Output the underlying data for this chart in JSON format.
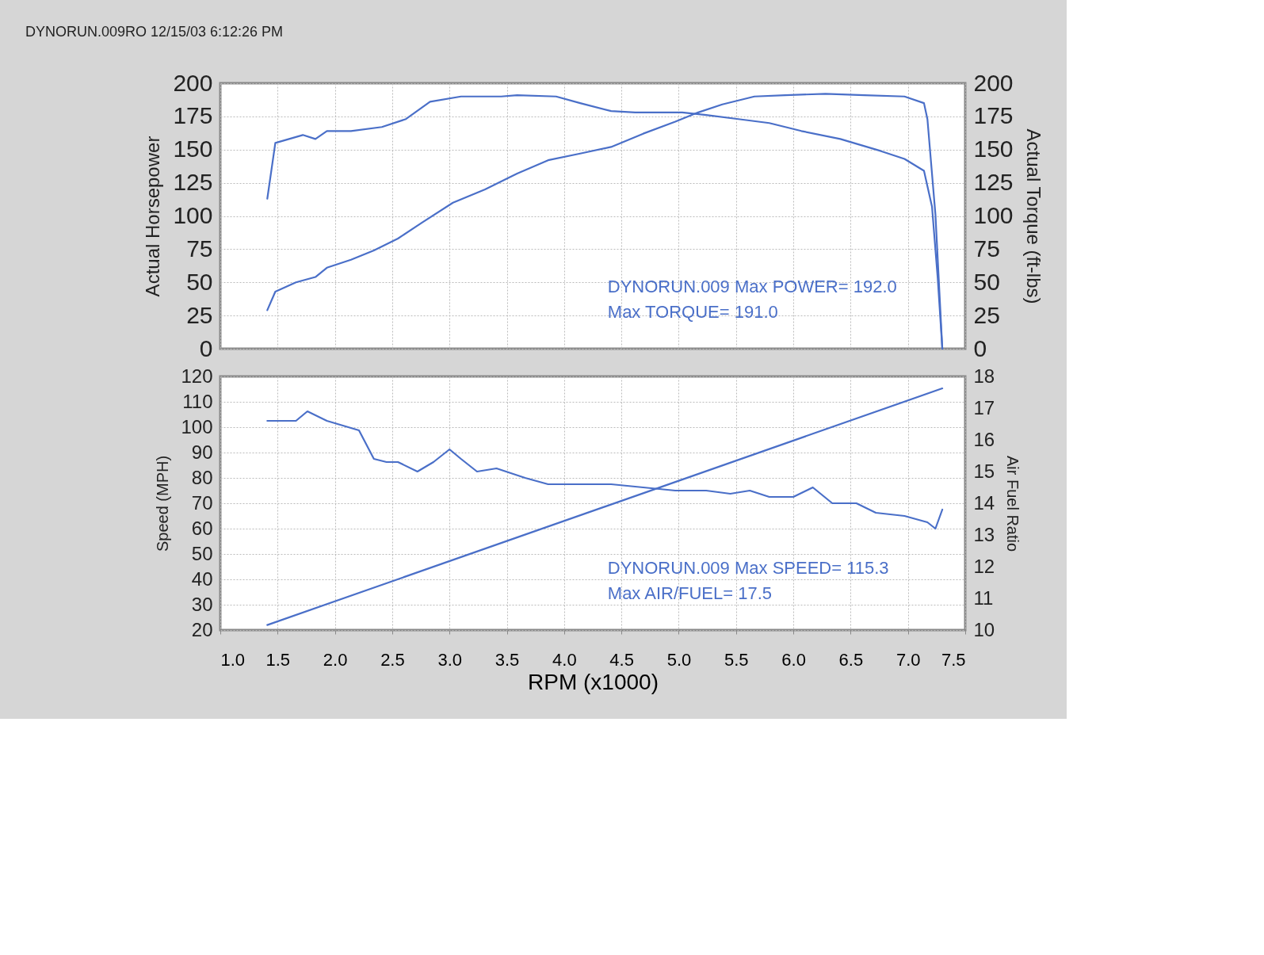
{
  "chart_data": [
    {
      "type": "line",
      "title": "DYNORUN.009RO  12/15/03 6:12:26 PM",
      "ylabel": "Actual Horsepower",
      "y2label": "Actual Torque (ft-lbs)",
      "annotations": [
        "DYNORUN.009  Max POWER= 192.0",
        "Max TORQUE= 191.0"
      ],
      "xlim": [
        1.0,
        7.5
      ],
      "xticks": [
        1,
        1.5,
        2,
        2.5,
        3,
        3.5,
        4,
        4.5,
        5,
        5.5,
        6,
        6.5,
        7,
        7.5
      ],
      "ylim": [
        0,
        200
      ],
      "yticks": [
        0,
        25,
        50,
        75,
        100,
        125,
        150,
        175,
        200
      ],
      "y2lim": [
        0,
        200
      ],
      "y2ticks": [
        0,
        25,
        50,
        75,
        100,
        125,
        150,
        175,
        200
      ],
      "grid": true,
      "tick_labels": "y",
      "series": [
        {
          "color": "#4a6fc8",
          "axis": "y",
          "x": [
            1.41,
            1.48,
            1.66,
            1.83,
            1.93,
            2.14,
            2.34,
            2.55,
            2.76,
            3.03,
            3.31,
            3.59,
            3.86,
            4.14,
            4.41,
            4.69,
            4.97,
            5.17,
            5.38,
            5.66,
            5.93,
            6.28,
            6.62,
            6.97,
            7.14,
            7.17,
            7.24,
            7.3
          ],
          "values": [
            29,
            43,
            50,
            54,
            61,
            67,
            74,
            83,
            95,
            110,
            120,
            132,
            142,
            147,
            152,
            162,
            171,
            178,
            184,
            190,
            191,
            192,
            191,
            190,
            185,
            173,
            101,
            0
          ]
        },
        {
          "color": "#4a6fc8",
          "axis": "y2",
          "x": [
            1.41,
            1.48,
            1.72,
            1.83,
            1.93,
            2.14,
            2.41,
            2.62,
            2.83,
            3.1,
            3.45,
            3.59,
            3.93,
            4.14,
            4.41,
            4.62,
            5.03,
            5.24,
            5.52,
            5.79,
            6.07,
            6.41,
            6.76,
            6.97,
            7.14,
            7.21,
            7.26,
            7.3
          ],
          "values": [
            113,
            155,
            161,
            158,
            164,
            164,
            167,
            173,
            186,
            190,
            190,
            191,
            190,
            185,
            179,
            178,
            178,
            176,
            173,
            170,
            164,
            158,
            149,
            143,
            134,
            107,
            53,
            0
          ]
        }
      ]
    },
    {
      "type": "line",
      "xlabel": "RPM (x1000)",
      "ylabel": "Speed (MPH)",
      "y2label": "Air Fuel Ratio",
      "annotations": [
        "DYNORUN.009  Max SPEED= 115.3",
        "Max AIR/FUEL= 17.5"
      ],
      "xlim": [
        1.0,
        7.5
      ],
      "xticks": [
        {
          "value": 1.0,
          "label": "1.0"
        },
        1.5,
        {
          "value": 2.0,
          "label": "2.0"
        },
        2.5,
        {
          "value": 3.0,
          "label": "3.0"
        },
        3.5,
        {
          "value": 4.0,
          "label": "4.0"
        },
        4.5,
        {
          "value": 5.0,
          "label": "5.0"
        },
        5.5,
        {
          "value": 6.0,
          "label": "6.0"
        },
        6.5,
        {
          "value": 7.0,
          "label": "7.0"
        },
        7.5
      ],
      "ylim": [
        20,
        120
      ],
      "yticks": [
        20,
        30,
        40,
        50,
        60,
        70,
        80,
        90,
        100,
        110,
        120
      ],
      "y2lim": [
        10,
        18
      ],
      "y2ticks": [
        10,
        11,
        12,
        13,
        14,
        15,
        16,
        17,
        18
      ],
      "grid": true,
      "series": [
        {
          "color": "#4a6fc8",
          "axis": "y",
          "x": [
            1.41,
            7.3
          ],
          "values": [
            22,
            115.3
          ]
        },
        {
          "color": "#4a6fc8",
          "axis": "y2",
          "x": [
            1.41,
            1.66,
            1.76,
            1.93,
            2.21,
            2.34,
            2.45,
            2.55,
            2.72,
            2.86,
            3.0,
            3.1,
            3.24,
            3.41,
            3.66,
            3.86,
            4.14,
            4.41,
            4.69,
            4.97,
            5.24,
            5.45,
            5.62,
            5.79,
            6.0,
            6.17,
            6.34,
            6.55,
            6.72,
            6.97,
            7.17,
            7.24,
            7.3
          ],
          "values": [
            16.6,
            16.6,
            16.9,
            16.6,
            16.3,
            15.4,
            15.3,
            15.3,
            15.0,
            15.3,
            15.7,
            15.4,
            15.0,
            15.1,
            14.8,
            14.6,
            14.6,
            14.6,
            14.5,
            14.4,
            14.4,
            14.3,
            14.4,
            14.2,
            14.2,
            14.5,
            14.0,
            14.0,
            13.7,
            13.6,
            13.4,
            13.2,
            13.8
          ]
        }
      ]
    }
  ]
}
